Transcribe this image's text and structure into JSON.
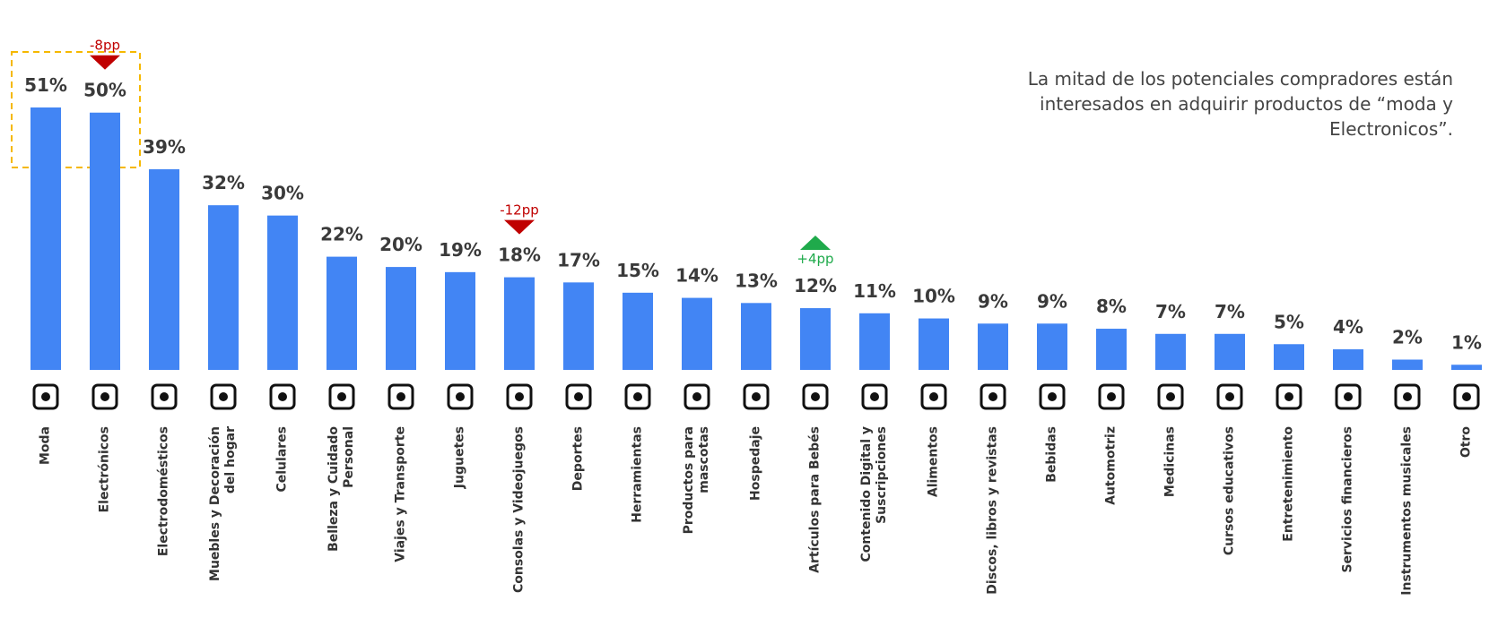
{
  "chart_data": {
    "type": "bar",
    "annotation": "La mitad de los potenciales compradores están\ninteresados en adquirir productos de “moda y\nElectronicos”.",
    "categories": [
      "Moda",
      "Electrónicos",
      "Electrodomésticos",
      "Muebles y Decoración\ndel hogar",
      "Celulares",
      "Belleza y Cuidado\nPersonal",
      "Viajes y Transporte",
      "Juguetes",
      "Consolas y Videojuegos",
      "Deportes",
      "Herramientas",
      "Productos para\nmascotas",
      "Hospedaje",
      "Artículos para Bebés",
      "Contenido Digital y\nSuscripciones",
      "Alimentos",
      "Discos, libros y revistas",
      "Bebidas",
      "Automotriz",
      "Medicinas",
      "Cursos educativos",
      "Entretenimiento",
      "Servicios financieros",
      "Instrumentos musicales",
      "Otro"
    ],
    "values": [
      51,
      50,
      39,
      32,
      30,
      22,
      20,
      19,
      18,
      17,
      15,
      14,
      13,
      12,
      11,
      10,
      9,
      9,
      8,
      7,
      7,
      5,
      4,
      2,
      1
    ],
    "value_labels": [
      "51%",
      "50%",
      "39%",
      "32%",
      "30%",
      "22%",
      "20%",
      "19%",
      "18%",
      "17%",
      "15%",
      "14%",
      "13%",
      "12%",
      "11%",
      "10%",
      "9%",
      "9%",
      "8%",
      "7%",
      "7%",
      "5%",
      "4%",
      "2%",
      "1%"
    ],
    "color": "#4285f4",
    "changes": [
      {
        "category": "Electrónicos",
        "text": "-8pp",
        "marker": "down",
        "color": "#c00000"
      },
      {
        "category": "Consolas y Videojuegos",
        "text": "-12pp",
        "marker": "down",
        "color": "#c00000"
      },
      {
        "category": "Artículos para Bebés",
        "text": "+4pp",
        "marker": "up",
        "color": "#1faa4b"
      }
    ]
  }
}
